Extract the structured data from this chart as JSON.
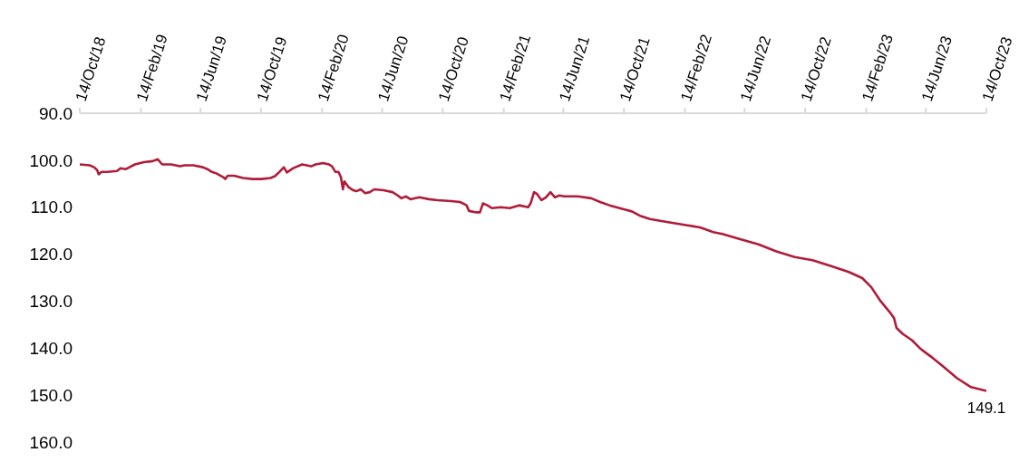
{
  "chart_data": {
    "type": "line",
    "x": [
      "2018-10-14",
      "2018-11-03",
      "2018-11-12",
      "2018-11-18",
      "2018-11-21",
      "2018-11-27",
      "2018-12-09",
      "2018-12-28",
      "2019-01-04",
      "2019-01-15",
      "2019-02-02",
      "2019-02-20",
      "2019-03-10",
      "2019-03-20",
      "2019-03-29",
      "2019-04-16",
      "2019-05-04",
      "2019-05-13",
      "2019-05-31",
      "2019-06-19",
      "2019-06-28",
      "2019-07-07",
      "2019-07-16",
      "2019-07-30",
      "2019-08-03",
      "2019-08-08",
      "2019-08-21",
      "2019-09-08",
      "2019-09-27",
      "2019-10-15",
      "2019-11-02",
      "2019-11-11",
      "2019-11-20",
      "2019-11-29",
      "2019-12-05",
      "2019-12-18",
      "2020-01-05",
      "2020-01-14",
      "2020-01-23",
      "2020-02-01",
      "2020-02-16",
      "2020-02-28",
      "2020-03-05",
      "2020-03-12",
      "2020-03-18",
      "2020-03-23",
      "2020-03-27",
      "2020-03-30",
      "2020-04-08",
      "2020-04-17",
      "2020-04-23",
      "2020-05-02",
      "2020-05-11",
      "2020-05-20",
      "2020-05-29",
      "2020-06-17",
      "2020-07-05",
      "2020-07-14",
      "2020-07-23",
      "2020-08-01",
      "2020-08-10",
      "2020-08-28",
      "2020-09-16",
      "2020-10-04",
      "2020-10-31",
      "2020-11-18",
      "2020-12-01",
      "2020-12-06",
      "2020-12-21",
      "2020-12-28",
      "2021-01-03",
      "2021-01-12",
      "2021-01-21",
      "2021-02-08",
      "2021-02-26",
      "2021-03-17",
      "2021-04-04",
      "2021-04-09",
      "2021-04-16",
      "2021-04-22",
      "2021-05-01",
      "2021-05-10",
      "2021-05-19",
      "2021-05-28",
      "2021-06-06",
      "2021-06-16",
      "2021-07-13",
      "2021-08-09",
      "2021-08-27",
      "2021-09-15",
      "2021-10-12",
      "2021-10-30",
      "2021-11-17",
      "2021-12-05",
      "2022-01-11",
      "2022-02-16",
      "2022-03-16",
      "2022-04-12",
      "2022-04-30",
      "2022-06-05",
      "2022-07-12",
      "2022-08-17",
      "2022-09-23",
      "2022-10-29",
      "2022-12-04",
      "2023-01-10",
      "2023-02-06",
      "2023-02-24",
      "2023-03-15",
      "2023-04-02",
      "2023-04-11",
      "2023-04-16",
      "2023-04-29",
      "2023-05-17",
      "2023-06-04",
      "2023-06-23",
      "2023-07-20",
      "2023-08-16",
      "2023-09-13",
      "2023-10-14"
    ],
    "values": [
      100.9,
      101.1,
      101.5,
      102.1,
      103.0,
      102.5,
      102.5,
      102.3,
      101.7,
      101.9,
      100.9,
      100.4,
      100.2,
      99.8,
      100.9,
      100.9,
      101.3,
      101.1,
      101.1,
      101.5,
      101.9,
      102.5,
      102.8,
      103.6,
      104.0,
      103.3,
      103.3,
      103.8,
      104.0,
      104.0,
      103.8,
      103.4,
      102.5,
      101.5,
      102.6,
      101.7,
      100.9,
      101.1,
      101.3,
      100.9,
      100.6,
      100.9,
      101.3,
      102.5,
      102.5,
      103.6,
      106.2,
      104.5,
      105.8,
      106.4,
      106.6,
      106.2,
      107.0,
      106.8,
      106.2,
      106.4,
      106.8,
      107.4,
      108.1,
      107.7,
      108.3,
      107.9,
      108.3,
      108.5,
      108.7,
      108.9,
      109.6,
      110.8,
      111.1,
      111.1,
      109.2,
      109.6,
      110.2,
      110.0,
      110.2,
      109.6,
      110.0,
      109.2,
      106.8,
      107.2,
      108.5,
      107.9,
      106.8,
      107.9,
      107.5,
      107.7,
      107.7,
      108.1,
      108.9,
      109.6,
      110.4,
      110.9,
      111.9,
      112.5,
      113.2,
      113.8,
      114.3,
      115.3,
      115.7,
      116.8,
      117.9,
      119.4,
      120.6,
      121.3,
      122.5,
      123.8,
      125.1,
      127.0,
      130.0,
      132.3,
      133.6,
      135.7,
      137.0,
      138.3,
      140.2,
      141.7,
      144.0,
      146.4,
      148.3,
      149.1
    ],
    "value_labels": [
      null,
      null,
      null,
      null,
      null,
      null,
      null,
      null,
      null,
      null,
      null,
      null,
      null,
      null,
      null,
      null,
      null,
      null,
      null,
      null,
      null,
      null,
      null,
      null,
      null,
      null,
      null,
      null,
      null,
      null,
      null,
      null,
      null,
      null,
      null,
      null,
      null,
      null,
      null,
      null,
      null,
      null,
      null,
      null,
      null,
      null,
      null,
      null,
      null,
      null,
      null,
      null,
      null,
      null,
      null,
      null,
      null,
      null,
      null,
      null,
      null,
      null,
      null,
      null,
      null,
      null,
      null,
      null,
      null,
      null,
      null,
      null,
      null,
      null,
      null,
      null,
      null,
      null,
      null,
      null,
      null,
      null,
      null,
      null,
      null,
      null,
      null,
      null,
      null,
      null,
      null,
      null,
      null,
      null,
      null,
      null,
      null,
      null,
      null,
      null,
      null,
      null,
      null,
      null,
      null,
      null,
      null,
      null,
      null,
      null,
      null,
      null,
      null,
      null,
      null,
      null,
      null,
      null,
      null,
      "149.1"
    ],
    "color": "#b01c3a",
    "xlim": [
      "2018-10-14",
      "2023-10-14"
    ],
    "xticks": [
      {
        "value": "2018-10-14",
        "label": "14/Oct/18"
      },
      {
        "value": "2019-02-14",
        "label": "14/Feb/19"
      },
      {
        "value": "2019-06-14",
        "label": "14/Jun/19"
      },
      {
        "value": "2019-10-14",
        "label": "14/Oct/19"
      },
      {
        "value": "2020-02-14",
        "label": "14/Feb/20"
      },
      {
        "value": "2020-06-14",
        "label": "14/Jun/20"
      },
      {
        "value": "2020-10-14",
        "label": "14/Oct/20"
      },
      {
        "value": "2021-02-14",
        "label": "14/Feb/21"
      },
      {
        "value": "2021-06-14",
        "label": "14/Jun/21"
      },
      {
        "value": "2021-10-14",
        "label": "14/Oct/21"
      },
      {
        "value": "2022-02-14",
        "label": "14/Feb/22"
      },
      {
        "value": "2022-06-14",
        "label": "14/Jun/22"
      },
      {
        "value": "2022-10-14",
        "label": "14/Oct/22"
      },
      {
        "value": "2023-02-14",
        "label": "14/Feb/23"
      },
      {
        "value": "2023-06-14",
        "label": "14/Jun/23"
      },
      {
        "value": "2023-10-14",
        "label": "14/Oct/23"
      }
    ],
    "ylim": [
      160,
      90
    ],
    "yticks": [
      {
        "value": 90,
        "label": "90.0"
      },
      {
        "value": 100,
        "label": "100.0"
      },
      {
        "value": 110,
        "label": "110.0"
      },
      {
        "value": 120,
        "label": "120.0"
      },
      {
        "value": 130,
        "label": "130.0"
      },
      {
        "value": 140,
        "label": "140.0"
      },
      {
        "value": 150,
        "label": "150.0"
      },
      {
        "value": 160,
        "label": "160.0"
      }
    ],
    "grid": false,
    "marker": "none",
    "line_style": "solid"
  }
}
